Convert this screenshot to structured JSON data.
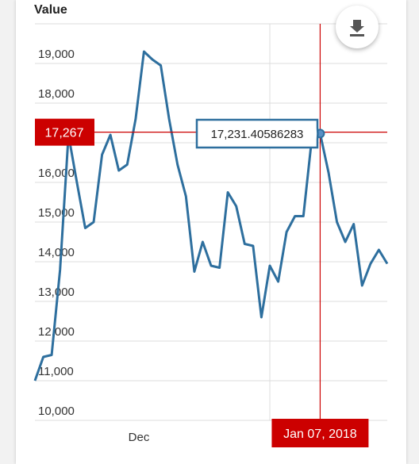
{
  "chart_data": {
    "type": "line",
    "ylabel": "Value",
    "ylim": [
      10000,
      19500
    ],
    "y_ticks": [
      "10,000",
      "11,000",
      "12,000",
      "13,000",
      "14,000",
      "15,000",
      "16,000",
      "17,000",
      "18,000",
      "19,000"
    ],
    "x_ticks": [
      "Dec"
    ],
    "series": [
      {
        "values": [
          11000,
          11600,
          11650,
          13800,
          17200,
          16000,
          14850,
          15000,
          16700,
          17200,
          16300,
          16450,
          17600,
          19300,
          19100,
          18950,
          17600,
          16450,
          15650,
          13750,
          14500,
          13900,
          13850,
          15750,
          15400,
          14450,
          14400,
          12600,
          13900,
          13500,
          14750,
          15150,
          15150,
          17100,
          17231.41,
          16250,
          15000,
          14500,
          14950,
          13400,
          13950,
          14300,
          13950
        ],
        "color": "#2e6f9e"
      }
    ],
    "crosshair": {
      "y_value": 17267,
      "y_label": "17,267",
      "x_label": "Jan 07, 2018",
      "point_index": 34
    },
    "tooltip": {
      "text": "17,231.40586283"
    },
    "grid": true
  },
  "ui": {
    "download_icon": "download-icon",
    "accent_color": "#cc0000",
    "line_color": "#2e6f9e"
  }
}
